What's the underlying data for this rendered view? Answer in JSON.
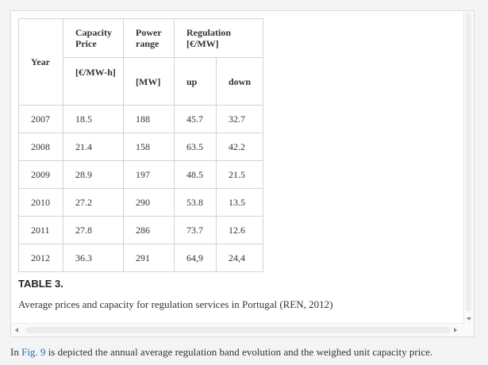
{
  "table": {
    "header": {
      "year": "Year",
      "capacity_price": "Capacity Price",
      "power_range": "Power range",
      "regulation": "Regulation [€/MW]",
      "capacity_unit": "[€/MW-h]",
      "power_unit": "[MW]",
      "up": "up",
      "down": "down"
    },
    "rows": [
      {
        "year": "2007",
        "capacity_price": "18.5",
        "power_range": "188",
        "up": "45.7",
        "down": "32.7"
      },
      {
        "year": "2008",
        "capacity_price": "21.4",
        "power_range": "158",
        "up": "63.5",
        "down": "42.2"
      },
      {
        "year": "2009",
        "capacity_price": "28.9",
        "power_range": "197",
        "up": "48.5",
        "down": "21.5"
      },
      {
        "year": "2010",
        "capacity_price": "27.2",
        "power_range": "290",
        "up": "53.8",
        "down": "13.5"
      },
      {
        "year": "2011",
        "capacity_price": "27.8",
        "power_range": "286",
        "up": "73.7",
        "down": "12.6"
      },
      {
        "year": "2012",
        "capacity_price": "36.3",
        "power_range": "291",
        "up": "64,9",
        "down": "24,4"
      }
    ]
  },
  "caption": {
    "label": "TABLE 3.",
    "text": "Average prices and capacity for regulation services in Portugal (REN, 2012)"
  },
  "body": {
    "prefix": "In ",
    "link": "Fig. 9",
    "suffix": " is depicted the annual average regulation band evolution and the weighed unit capacity price."
  },
  "colors": {
    "link": "#2a6ebb",
    "border": "#d4d4d4",
    "text": "#333333"
  }
}
